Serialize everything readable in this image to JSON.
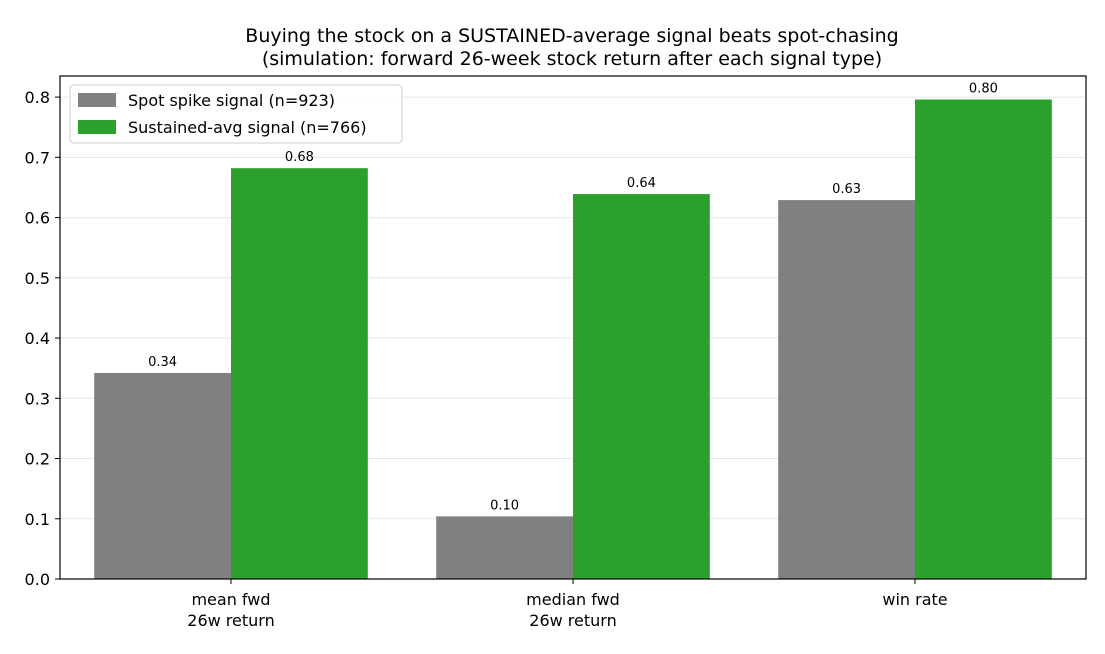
{
  "chart_data": {
    "type": "bar",
    "title": "Buying the stock on a SUSTAINED-average signal beats spot-chasing",
    "subtitle": "(simulation: forward 26-week stock return after each signal type)",
    "categories": [
      [
        "mean fwd",
        "26w return"
      ],
      [
        "median fwd",
        "26w return"
      ],
      [
        "win rate"
      ]
    ],
    "series": [
      {
        "name": "Spot spike signal (n=923)",
        "color": "#808080",
        "values": [
          0.342,
          0.104,
          0.629
        ],
        "labels": [
          "0.34",
          "0.10",
          "0.63"
        ]
      },
      {
        "name": "Sustained-avg signal (n=766)",
        "color": "#2ca02c",
        "values": [
          0.682,
          0.639,
          0.796
        ],
        "labels": [
          "0.68",
          "0.64",
          "0.80"
        ]
      }
    ],
    "ylim": [
      0,
      0.835
    ],
    "yticks": [
      0.0,
      0.1,
      0.2,
      0.3,
      0.4,
      0.5,
      0.6,
      0.7,
      0.8
    ],
    "ytick_labels": [
      "0.0",
      "0.1",
      "0.2",
      "0.3",
      "0.4",
      "0.5",
      "0.6",
      "0.7",
      "0.8"
    ],
    "xlabel": "",
    "ylabel": "",
    "grid": "y",
    "legend_position": "top-left"
  }
}
